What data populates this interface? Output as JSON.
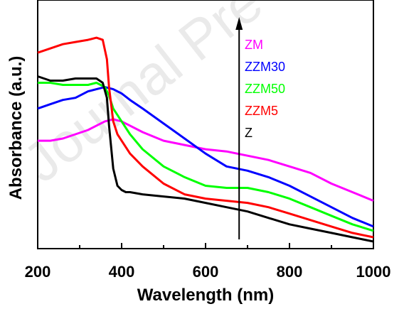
{
  "watermark": "Journal Pre",
  "chart_data": {
    "type": "line",
    "title": "",
    "xlabel": "Wavelength (nm)",
    "ylabel": "Absorbance (a.u.)",
    "xlim": [
      200,
      1000
    ],
    "ylim": [
      0,
      1.0
    ],
    "xticks": [
      "200",
      "400",
      "600",
      "800",
      "1000"
    ],
    "yticks_shown": false,
    "grid": false,
    "legend_position": "right, stacked beside arrow",
    "arrow": {
      "x": 680,
      "direction": "up"
    },
    "series": [
      {
        "name": "ZM",
        "color": "#ff00ff",
        "x": [
          200,
          230,
          260,
          290,
          320,
          340,
          360,
          380,
          400,
          420,
          450,
          500,
          550,
          600,
          650,
          700,
          750,
          800,
          850,
          900,
          950,
          1000
        ],
        "y": [
          0.47,
          0.47,
          0.48,
          0.5,
          0.52,
          0.54,
          0.56,
          0.57,
          0.56,
          0.54,
          0.51,
          0.47,
          0.45,
          0.43,
          0.42,
          0.4,
          0.38,
          0.35,
          0.32,
          0.27,
          0.23,
          0.19
        ]
      },
      {
        "name": "ZZM30",
        "color": "#0000ff",
        "x": [
          200,
          230,
          260,
          290,
          320,
          340,
          360,
          380,
          400,
          420,
          450,
          500,
          550,
          600,
          650,
          700,
          750,
          800,
          850,
          900,
          950,
          1000
        ],
        "y": [
          0.62,
          0.64,
          0.66,
          0.67,
          0.7,
          0.71,
          0.72,
          0.71,
          0.69,
          0.66,
          0.62,
          0.55,
          0.48,
          0.41,
          0.35,
          0.33,
          0.3,
          0.26,
          0.21,
          0.16,
          0.11,
          0.07
        ]
      },
      {
        "name": "ZZM50",
        "color": "#00ff00",
        "x": [
          200,
          230,
          260,
          290,
          320,
          340,
          360,
          370,
          380,
          400,
          420,
          450,
          500,
          550,
          600,
          650,
          700,
          750,
          800,
          850,
          900,
          950,
          1000
        ],
        "y": [
          0.74,
          0.74,
          0.73,
          0.73,
          0.73,
          0.74,
          0.72,
          0.68,
          0.62,
          0.56,
          0.5,
          0.43,
          0.35,
          0.3,
          0.26,
          0.25,
          0.25,
          0.23,
          0.2,
          0.16,
          0.12,
          0.08,
          0.05
        ]
      },
      {
        "name": "ZZM5",
        "color": "#ff0000",
        "x": [
          200,
          230,
          260,
          290,
          320,
          340,
          355,
          365,
          370,
          380,
          390,
          400,
          420,
          450,
          500,
          550,
          600,
          650,
          700,
          750,
          800,
          850,
          900,
          950,
          1000
        ],
        "y": [
          0.88,
          0.9,
          0.92,
          0.93,
          0.94,
          0.95,
          0.94,
          0.85,
          0.72,
          0.56,
          0.5,
          0.47,
          0.41,
          0.35,
          0.27,
          0.22,
          0.2,
          0.19,
          0.18,
          0.16,
          0.13,
          0.1,
          0.07,
          0.04,
          0.02
        ]
      },
      {
        "name": "Z",
        "color": "#000000",
        "x": [
          200,
          230,
          260,
          290,
          320,
          340,
          355,
          365,
          370,
          380,
          390,
          400,
          410,
          420,
          450,
          500,
          550,
          600,
          650,
          700,
          750,
          800,
          850,
          900,
          950,
          1000
        ],
        "y": [
          0.77,
          0.75,
          0.75,
          0.76,
          0.76,
          0.76,
          0.74,
          0.67,
          0.54,
          0.34,
          0.26,
          0.24,
          0.23,
          0.23,
          0.22,
          0.21,
          0.2,
          0.18,
          0.16,
          0.14,
          0.11,
          0.08,
          0.06,
          0.04,
          0.02,
          0.0
        ]
      }
    ]
  }
}
